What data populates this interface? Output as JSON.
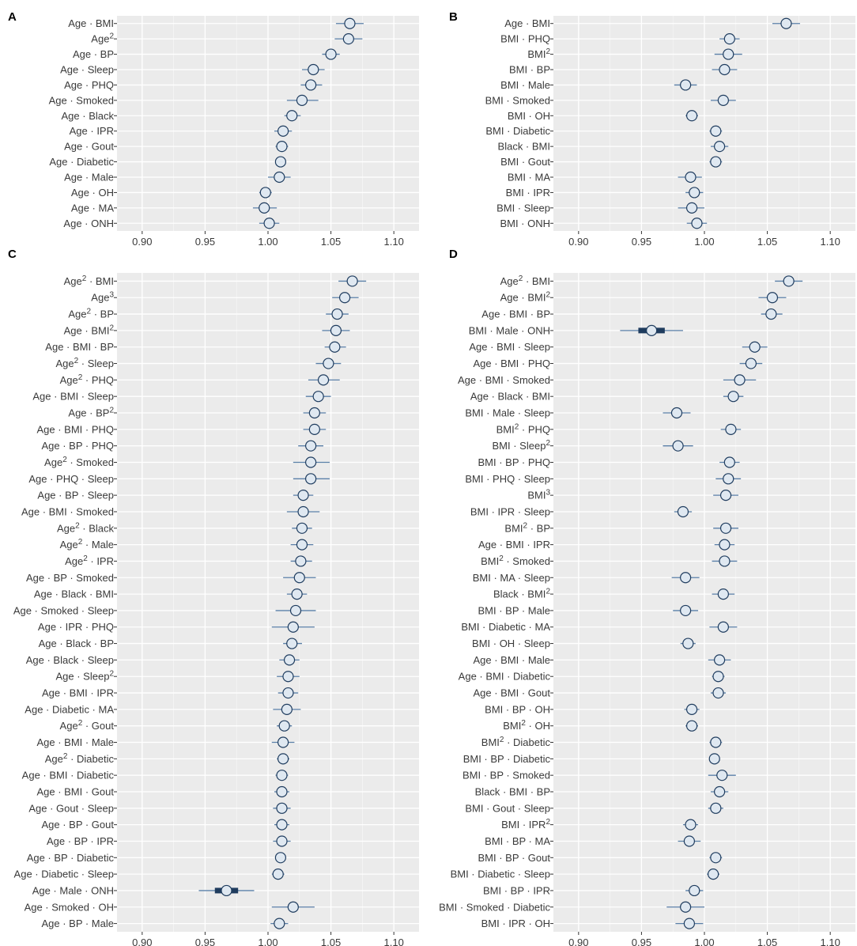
{
  "figure": {
    "colors": {
      "panel_bg": "#ebebeb",
      "grid": "#ffffff",
      "ci_line": "#5a7fa8",
      "point_fill": "#dfe8f1",
      "point_stroke": "#1f3c5e",
      "significant_box": "#1f3c5e"
    }
  },
  "chart_data": [
    {
      "panel": "A",
      "type": "forest",
      "xlim": [
        0.88,
        1.12
      ],
      "ticks": [
        0.9,
        0.95,
        1.0,
        1.05,
        1.1
      ],
      "tick_labels": [
        "0.90",
        "0.95",
        "1.00",
        "1.05",
        "1.10"
      ],
      "rows": [
        {
          "label": "Age · BMI",
          "est": 1.065,
          "lo": 1.054,
          "hi": 1.076
        },
        {
          "label": "Age^2",
          "est": 1.064,
          "lo": 1.053,
          "hi": 1.075
        },
        {
          "label": "Age · BP",
          "est": 1.05,
          "lo": 1.043,
          "hi": 1.057
        },
        {
          "label": "Age · Sleep",
          "est": 1.036,
          "lo": 1.027,
          "hi": 1.045
        },
        {
          "label": "Age · PHQ",
          "est": 1.034,
          "lo": 1.026,
          "hi": 1.043
        },
        {
          "label": "Age · Smoked",
          "est": 1.027,
          "lo": 1.015,
          "hi": 1.04
        },
        {
          "label": "Age · Black",
          "est": 1.019,
          "lo": 1.013,
          "hi": 1.026
        },
        {
          "label": "Age · IPR",
          "est": 1.012,
          "lo": 1.005,
          "hi": 1.019
        },
        {
          "label": "Age · Gout",
          "est": 1.011,
          "lo": 1.006,
          "hi": 1.016
        },
        {
          "label": "Age · Diabetic",
          "est": 1.01,
          "lo": 1.006,
          "hi": 1.014
        },
        {
          "label": "Age · Male",
          "est": 1.009,
          "lo": 1.0,
          "hi": 1.018
        },
        {
          "label": "Age · OH",
          "est": 0.998,
          "lo": 0.993,
          "hi": 1.003
        },
        {
          "label": "Age · MA",
          "est": 0.997,
          "lo": 0.988,
          "hi": 1.007
        },
        {
          "label": "Age · ONH",
          "est": 1.001,
          "lo": 0.993,
          "hi": 1.009
        }
      ]
    },
    {
      "panel": "B",
      "type": "forest",
      "xlim": [
        0.88,
        1.12
      ],
      "ticks": [
        0.9,
        0.95,
        1.0,
        1.05,
        1.1
      ],
      "tick_labels": [
        "0.90",
        "0.95",
        "1.00",
        "1.05",
        "1.10"
      ],
      "rows": [
        {
          "label": "Age · BMI",
          "est": 1.065,
          "lo": 1.054,
          "hi": 1.076
        },
        {
          "label": "BMI · PHQ",
          "est": 1.02,
          "lo": 1.012,
          "hi": 1.028
        },
        {
          "label": "BMI^2",
          "est": 1.019,
          "lo": 1.008,
          "hi": 1.03
        },
        {
          "label": "BMI · BP",
          "est": 1.016,
          "lo": 1.006,
          "hi": 1.026
        },
        {
          "label": "BMI · Male",
          "est": 0.985,
          "lo": 0.976,
          "hi": 0.994
        },
        {
          "label": "BMI · Smoked",
          "est": 1.015,
          "lo": 1.005,
          "hi": 1.025
        },
        {
          "label": "BMI · OH",
          "est": 0.99,
          "lo": 0.985,
          "hi": 0.995
        },
        {
          "label": "BMI · Diabetic",
          "est": 1.009,
          "lo": 1.004,
          "hi": 1.014
        },
        {
          "label": "Black · BMI",
          "est": 1.012,
          "lo": 1.005,
          "hi": 1.019
        },
        {
          "label": "BMI · Gout",
          "est": 1.009,
          "lo": 1.004,
          "hi": 1.014
        },
        {
          "label": "BMI · MA",
          "est": 0.989,
          "lo": 0.979,
          "hi": 0.998
        },
        {
          "label": "BMI · IPR",
          "est": 0.992,
          "lo": 0.985,
          "hi": 0.999
        },
        {
          "label": "BMI · Sleep",
          "est": 0.99,
          "lo": 0.979,
          "hi": 1.0
        },
        {
          "label": "BMI · ONH",
          "est": 0.994,
          "lo": 0.986,
          "hi": 1.002
        }
      ]
    },
    {
      "panel": "C",
      "type": "forest",
      "xlim": [
        0.88,
        1.12
      ],
      "ticks": [
        0.9,
        0.95,
        1.0,
        1.05,
        1.1
      ],
      "tick_labels": [
        "0.90",
        "0.95",
        "1.00",
        "1.05",
        "1.10"
      ],
      "rows": [
        {
          "label": "Age^2 · BMI",
          "est": 1.067,
          "lo": 1.056,
          "hi": 1.078
        },
        {
          "label": "Age^3",
          "est": 1.061,
          "lo": 1.051,
          "hi": 1.072
        },
        {
          "label": "Age^2 · BP",
          "est": 1.055,
          "lo": 1.046,
          "hi": 1.064
        },
        {
          "label": "Age · BMI^2",
          "est": 1.054,
          "lo": 1.043,
          "hi": 1.065
        },
        {
          "label": "Age · BMI · BP",
          "est": 1.053,
          "lo": 1.045,
          "hi": 1.062
        },
        {
          "label": "Age^2 · Sleep",
          "est": 1.048,
          "lo": 1.038,
          "hi": 1.058
        },
        {
          "label": "Age^2 · PHQ",
          "est": 1.044,
          "lo": 1.032,
          "hi": 1.057
        },
        {
          "label": "Age · BMI · Sleep",
          "est": 1.04,
          "lo": 1.03,
          "hi": 1.05
        },
        {
          "label": "Age · BP^2",
          "est": 1.037,
          "lo": 1.028,
          "hi": 1.046
        },
        {
          "label": "Age · BMI · PHQ",
          "est": 1.037,
          "lo": 1.028,
          "hi": 1.046
        },
        {
          "label": "Age · BP · PHQ",
          "est": 1.034,
          "lo": 1.024,
          "hi": 1.044
        },
        {
          "label": "Age^2 · Smoked",
          "est": 1.034,
          "lo": 1.02,
          "hi": 1.049
        },
        {
          "label": "Age · PHQ · Sleep",
          "est": 1.034,
          "lo": 1.02,
          "hi": 1.049
        },
        {
          "label": "Age · BP · Sleep",
          "est": 1.028,
          "lo": 1.02,
          "hi": 1.036
        },
        {
          "label": "Age · BMI · Smoked",
          "est": 1.028,
          "lo": 1.015,
          "hi": 1.041
        },
        {
          "label": "Age^2 · Black",
          "est": 1.027,
          "lo": 1.019,
          "hi": 1.035
        },
        {
          "label": "Age^2 · Male",
          "est": 1.027,
          "lo": 1.018,
          "hi": 1.036
        },
        {
          "label": "Age^2 · IPR",
          "est": 1.026,
          "lo": 1.018,
          "hi": 1.035
        },
        {
          "label": "Age · BP · Smoked",
          "est": 1.025,
          "lo": 1.012,
          "hi": 1.038
        },
        {
          "label": "Age · Black · BMI",
          "est": 1.023,
          "lo": 1.015,
          "hi": 1.031
        },
        {
          "label": "Age · Smoked · Sleep",
          "est": 1.022,
          "lo": 1.006,
          "hi": 1.038
        },
        {
          "label": "Age · IPR · PHQ",
          "est": 1.02,
          "lo": 1.003,
          "hi": 1.037
        },
        {
          "label": "Age · Black · BP",
          "est": 1.019,
          "lo": 1.012,
          "hi": 1.027
        },
        {
          "label": "Age · Black · Sleep",
          "est": 1.017,
          "lo": 1.009,
          "hi": 1.025
        },
        {
          "label": "Age · Sleep^2",
          "est": 1.016,
          "lo": 1.007,
          "hi": 1.025
        },
        {
          "label": "Age · BMI · IPR",
          "est": 1.016,
          "lo": 1.008,
          "hi": 1.024
        },
        {
          "label": "Age · Diabetic · MA",
          "est": 1.015,
          "lo": 1.004,
          "hi": 1.026
        },
        {
          "label": "Age^2 · Gout",
          "est": 1.013,
          "lo": 1.007,
          "hi": 1.019
        },
        {
          "label": "Age · BMI · Male",
          "est": 1.012,
          "lo": 1.003,
          "hi": 1.021
        },
        {
          "label": "Age^2 · Diabetic",
          "est": 1.012,
          "lo": 1.007,
          "hi": 1.017
        },
        {
          "label": "Age · BMI · Diabetic",
          "est": 1.011,
          "lo": 1.006,
          "hi": 1.016
        },
        {
          "label": "Age · BMI · Gout",
          "est": 1.011,
          "lo": 1.005,
          "hi": 1.017
        },
        {
          "label": "Age · Gout · Sleep",
          "est": 1.011,
          "lo": 1.004,
          "hi": 1.018
        },
        {
          "label": "Age · BP · Gout",
          "est": 1.011,
          "lo": 1.005,
          "hi": 1.017
        },
        {
          "label": "Age · BP · IPR",
          "est": 1.011,
          "lo": 1.004,
          "hi": 1.018
        },
        {
          "label": "Age · BP · Diabetic",
          "est": 1.01,
          "lo": 1.006,
          "hi": 1.014
        },
        {
          "label": "Age · Diabetic · Sleep",
          "est": 1.008,
          "lo": 1.003,
          "hi": 1.013
        },
        {
          "label": "Age · Male · ONH",
          "est": 0.967,
          "lo": 0.945,
          "hi": 0.989,
          "significant": true
        },
        {
          "label": "Age · Smoked · OH",
          "est": 1.02,
          "lo": 1.003,
          "hi": 1.037
        },
        {
          "label": "Age · BP · Male",
          "est": 1.009,
          "lo": 1.002,
          "hi": 1.016
        }
      ]
    },
    {
      "panel": "D",
      "type": "forest",
      "xlim": [
        0.88,
        1.12
      ],
      "ticks": [
        0.9,
        0.95,
        1.0,
        1.05,
        1.1
      ],
      "tick_labels": [
        "0.90",
        "0.95",
        "1.00",
        "1.05",
        "1.10"
      ],
      "rows": [
        {
          "label": "Age^2 · BMI",
          "est": 1.067,
          "lo": 1.056,
          "hi": 1.078
        },
        {
          "label": "Age · BMI^2",
          "est": 1.054,
          "lo": 1.043,
          "hi": 1.065
        },
        {
          "label": "Age · BMI · BP",
          "est": 1.053,
          "lo": 1.045,
          "hi": 1.062
        },
        {
          "label": "BMI · Male · ONH",
          "est": 0.958,
          "lo": 0.933,
          "hi": 0.983,
          "significant": true
        },
        {
          "label": "Age · BMI · Sleep",
          "est": 1.04,
          "lo": 1.03,
          "hi": 1.05
        },
        {
          "label": "Age · BMI · PHQ",
          "est": 1.037,
          "lo": 1.028,
          "hi": 1.046
        },
        {
          "label": "Age · BMI · Smoked",
          "est": 1.028,
          "lo": 1.015,
          "hi": 1.041
        },
        {
          "label": "Age · Black · BMI",
          "est": 1.023,
          "lo": 1.015,
          "hi": 1.031
        },
        {
          "label": "BMI · Male · Sleep",
          "est": 0.978,
          "lo": 0.967,
          "hi": 0.989
        },
        {
          "label": "BMI^2 · PHQ",
          "est": 1.021,
          "lo": 1.013,
          "hi": 1.029
        },
        {
          "label": "BMI · Sleep^2",
          "est": 0.979,
          "lo": 0.967,
          "hi": 0.991
        },
        {
          "label": "BMI · BP · PHQ",
          "est": 1.02,
          "lo": 1.012,
          "hi": 1.028
        },
        {
          "label": "BMI · PHQ · Sleep",
          "est": 1.019,
          "lo": 1.009,
          "hi": 1.029
        },
        {
          "label": "BMI^3",
          "est": 1.017,
          "lo": 1.007,
          "hi": 1.027
        },
        {
          "label": "BMI · IPR · Sleep",
          "est": 0.983,
          "lo": 0.976,
          "hi": 0.99
        },
        {
          "label": "BMI^2 · BP",
          "est": 1.017,
          "lo": 1.007,
          "hi": 1.027
        },
        {
          "label": "Age · BMI · IPR",
          "est": 1.016,
          "lo": 1.008,
          "hi": 1.024
        },
        {
          "label": "BMI^2 · Smoked",
          "est": 1.016,
          "lo": 1.006,
          "hi": 1.026
        },
        {
          "label": "BMI · MA · Sleep",
          "est": 0.985,
          "lo": 0.974,
          "hi": 0.996
        },
        {
          "label": "Black · BMI^2",
          "est": 1.015,
          "lo": 1.006,
          "hi": 1.024
        },
        {
          "label": "BMI · BP · Male",
          "est": 0.985,
          "lo": 0.975,
          "hi": 0.995
        },
        {
          "label": "BMI · Diabetic · MA",
          "est": 1.015,
          "lo": 1.004,
          "hi": 1.026
        },
        {
          "label": "BMI · OH · Sleep",
          "est": 0.987,
          "lo": 0.981,
          "hi": 0.993
        },
        {
          "label": "Age · BMI · Male",
          "est": 1.012,
          "lo": 1.003,
          "hi": 1.021
        },
        {
          "label": "Age · BMI · Diabetic",
          "est": 1.011,
          "lo": 1.006,
          "hi": 1.016
        },
        {
          "label": "Age · BMI · Gout",
          "est": 1.011,
          "lo": 1.005,
          "hi": 1.017
        },
        {
          "label": "BMI · BP · OH",
          "est": 0.99,
          "lo": 0.984,
          "hi": 0.996
        },
        {
          "label": "BMI^2 · OH",
          "est": 0.99,
          "lo": 0.985,
          "hi": 0.995
        },
        {
          "label": "BMI^2 · Diabetic",
          "est": 1.009,
          "lo": 1.004,
          "hi": 1.014
        },
        {
          "label": "BMI · BP · Diabetic",
          "est": 1.008,
          "lo": 1.004,
          "hi": 1.012
        },
        {
          "label": "BMI · BP · Smoked",
          "est": 1.014,
          "lo": 1.003,
          "hi": 1.025
        },
        {
          "label": "Black · BMI · BP",
          "est": 1.012,
          "lo": 1.005,
          "hi": 1.019
        },
        {
          "label": "BMI · Gout · Sleep",
          "est": 1.009,
          "lo": 1.003,
          "hi": 1.015
        },
        {
          "label": "BMI · IPR^2",
          "est": 0.989,
          "lo": 0.983,
          "hi": 0.995
        },
        {
          "label": "BMI · BP · MA",
          "est": 0.988,
          "lo": 0.979,
          "hi": 0.997
        },
        {
          "label": "BMI · BP · Gout",
          "est": 1.009,
          "lo": 1.004,
          "hi": 1.014
        },
        {
          "label": "BMI · Diabetic · Sleep",
          "est": 1.007,
          "lo": 1.002,
          "hi": 1.012
        },
        {
          "label": "BMI · BP · IPR",
          "est": 0.992,
          "lo": 0.985,
          "hi": 0.999
        },
        {
          "label": "BMI · Smoked · Diabetic",
          "est": 0.985,
          "lo": 0.97,
          "hi": 1.0
        },
        {
          "label": "BMI · IPR · OH",
          "est": 0.988,
          "lo": 0.977,
          "hi": 0.999
        }
      ]
    }
  ]
}
